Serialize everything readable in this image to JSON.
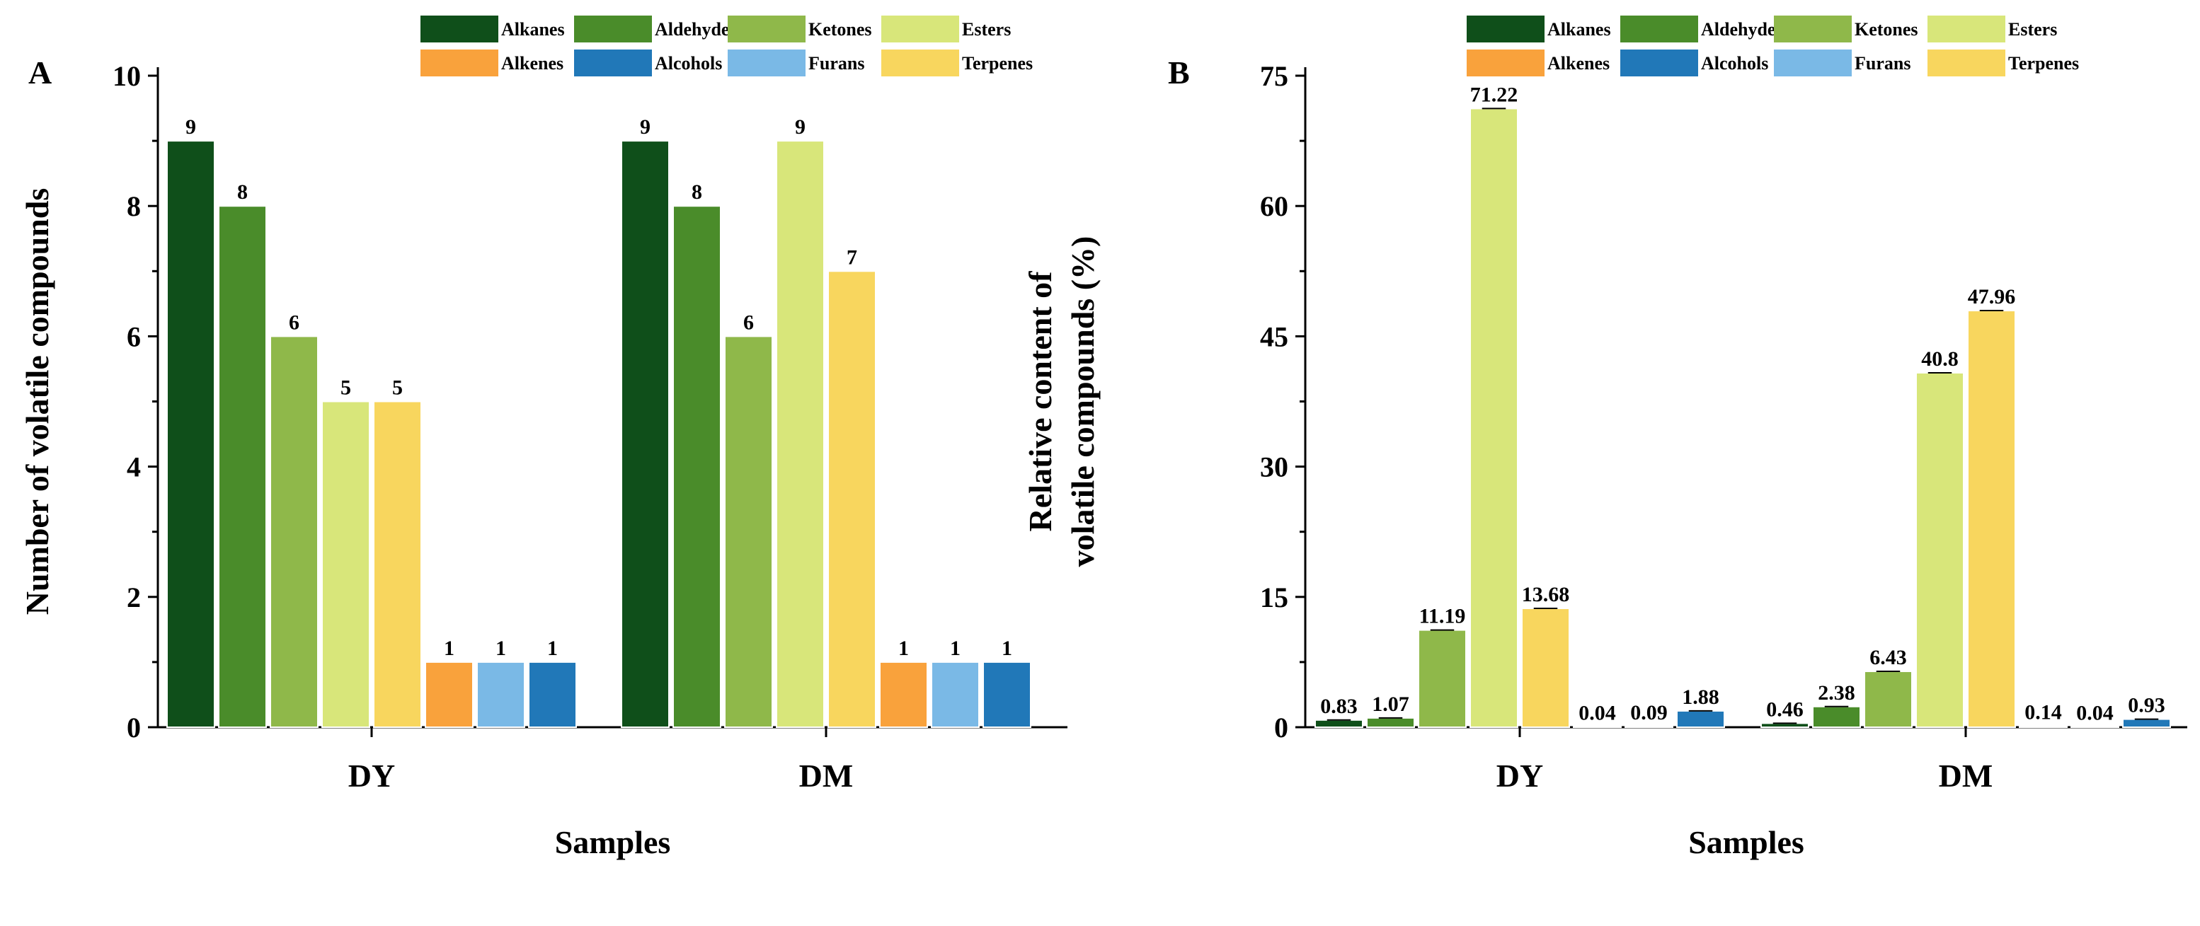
{
  "series_styles": [
    {
      "name": "Alkanes",
      "color": "#0f4f1a"
    },
    {
      "name": "Aldehydes",
      "color": "#4a8c2a"
    },
    {
      "name": "Ketones",
      "color": "#8fb84a"
    },
    {
      "name": "Esters",
      "color": "#d8e67a"
    },
    {
      "name": "Terpenes",
      "color": "#f8d65e"
    },
    {
      "name": "Alkenes",
      "color": "#f9a23c"
    },
    {
      "name": "Furans",
      "color": "#7ab9e6"
    },
    {
      "name": "Alcohols",
      "color": "#2178b8"
    }
  ],
  "legend_order": [
    "Alkanes",
    "Aldehydes",
    "Ketones",
    "Esters",
    "Alkenes",
    "Alcohols",
    "Furans",
    "Terpenes"
  ],
  "chart_data": [
    {
      "panel": "A",
      "type": "bar",
      "title": "",
      "xlabel": "Samples",
      "ylabel": "Number of volatile compounds",
      "ylim": [
        0,
        10
      ],
      "yticks": [
        0,
        2,
        4,
        6,
        8,
        10
      ],
      "categories": [
        "DY",
        "DM"
      ],
      "series": [
        {
          "name": "Alkanes",
          "values": [
            9,
            9
          ],
          "labels": [
            "9",
            "9"
          ]
        },
        {
          "name": "Aldehydes",
          "values": [
            8,
            8
          ],
          "labels": [
            "8",
            "8"
          ]
        },
        {
          "name": "Ketones",
          "values": [
            6,
            6
          ],
          "labels": [
            "6",
            "6"
          ]
        },
        {
          "name": "Esters",
          "values": [
            5,
            9
          ],
          "labels": [
            "5",
            "9"
          ]
        },
        {
          "name": "Terpenes",
          "values": [
            5,
            7
          ],
          "labels": [
            "5",
            "7"
          ]
        },
        {
          "name": "Alkenes",
          "values": [
            1,
            1
          ],
          "labels": [
            "1",
            "1"
          ]
        },
        {
          "name": "Furans",
          "values": [
            1,
            1
          ],
          "labels": [
            "1",
            "1"
          ]
        },
        {
          "name": "Alcohols",
          "values": [
            1,
            1
          ],
          "labels": [
            "1",
            "1"
          ]
        }
      ]
    },
    {
      "panel": "B",
      "type": "bar",
      "title": "",
      "xlabel": "Samples",
      "ylabel_lines": [
        "Relative content of",
        "volatile compounds (%)"
      ],
      "ylim": [
        0,
        75
      ],
      "yticks": [
        0,
        15,
        30,
        45,
        60,
        75
      ],
      "categories": [
        "DY",
        "DM"
      ],
      "series": [
        {
          "name": "Alkanes",
          "values": [
            0.83,
            0.46
          ],
          "labels": [
            "0.83",
            "0.46"
          ]
        },
        {
          "name": "Aldehydes",
          "values": [
            1.07,
            2.38
          ],
          "labels": [
            "1.07",
            "2.38"
          ]
        },
        {
          "name": "Ketones",
          "values": [
            11.19,
            6.43
          ],
          "labels": [
            "11.19",
            "6.43"
          ]
        },
        {
          "name": "Esters",
          "values": [
            71.22,
            40.8
          ],
          "labels": [
            "71.22",
            "40.8"
          ]
        },
        {
          "name": "Terpenes",
          "values": [
            13.68,
            47.96
          ],
          "labels": [
            "13.68",
            "47.96"
          ]
        },
        {
          "name": "Alkenes",
          "values": [
            0.04,
            0.14
          ],
          "labels": [
            "0.04",
            "0.14"
          ]
        },
        {
          "name": "Furans",
          "values": [
            0.09,
            0.04
          ],
          "labels": [
            "0.09",
            "0.04"
          ]
        },
        {
          "name": "Alcohols",
          "values": [
            1.88,
            0.93
          ],
          "labels": [
            "1.88",
            "0.93"
          ]
        }
      ]
    }
  ]
}
